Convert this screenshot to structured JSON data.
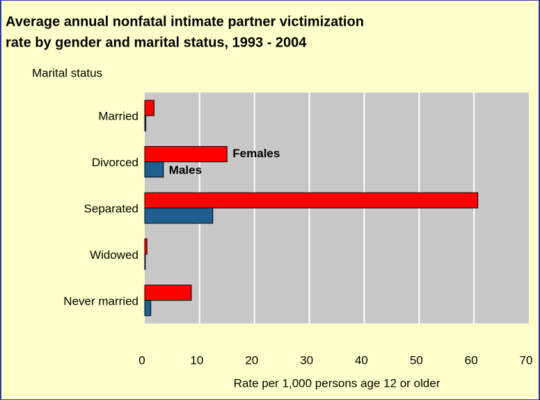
{
  "chart_data": {
    "type": "hbar",
    "title": [
      "Average annual nonfatal intimate partner victimization",
      "rate by gender and marital status, 1993 - 2004"
    ],
    "y_label": "Marital status",
    "x_label": "Rate per 1,000 persons age 12 or older",
    "categories": [
      "Married",
      "Divorced",
      "Separated",
      "Widowed",
      "Never married"
    ],
    "series": [
      {
        "name": "Females",
        "color": "#ff0000",
        "values": [
          1.7,
          15,
          60.7,
          0.4,
          8.5
        ]
      },
      {
        "name": "Males",
        "color": "#1f5f8f",
        "values": [
          0.2,
          3.4,
          12.4,
          0.1,
          1.1
        ]
      }
    ],
    "xlim": [
      0,
      70
    ],
    "xticks": [
      0,
      10,
      20,
      30,
      40,
      50,
      60,
      70
    ],
    "grid": true
  }
}
